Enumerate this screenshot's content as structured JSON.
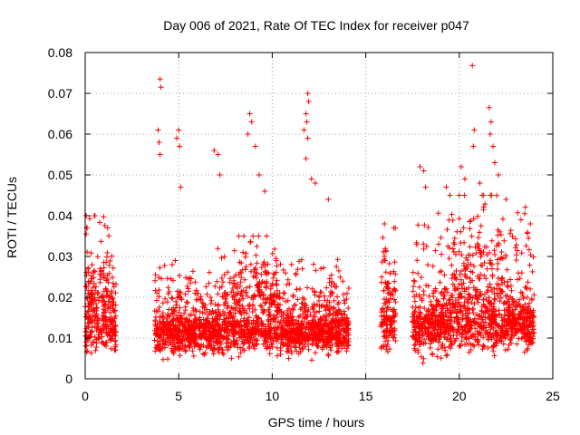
{
  "chart_data": {
    "type": "scatter",
    "title": "Day 006 of 2021, Rate Of TEC Index for receiver p047",
    "xlabel": "GPS time / hours",
    "ylabel": "ROTI / TECUs",
    "xlim": [
      0,
      25
    ],
    "ylim": [
      0,
      0.08
    ],
    "x_ticks": [
      0,
      5,
      10,
      15,
      20,
      25
    ],
    "y_ticks": [
      0,
      0.01,
      0.02,
      0.03,
      0.04,
      0.05,
      0.06,
      0.07,
      0.08
    ],
    "x_tick_labels": [
      "0",
      "5",
      "10",
      "15",
      "20",
      "25"
    ],
    "y_tick_labels": [
      "0",
      "0.01",
      "0.02",
      "0.03",
      "0.04",
      "0.05",
      "0.06",
      "0.07",
      "0.08"
    ],
    "grid": true,
    "marker": "+",
    "marker_color": "#ff0000",
    "segments": [
      {
        "t0": 0.0,
        "t1": 1.65,
        "base": 0.012,
        "spread": 0.006,
        "maxv": 0.04,
        "peak_t": 0.1
      },
      {
        "t0": 3.7,
        "t1": 14.1,
        "base": 0.011,
        "spread": 0.005,
        "maxv": 0.035,
        "peak_t": 9.0
      },
      {
        "t0": 15.8,
        "t1": 16.6,
        "base": 0.012,
        "spread": 0.007,
        "maxv": 0.037,
        "peak_t": 16.2
      },
      {
        "t0": 17.5,
        "t1": 24.0,
        "base": 0.013,
        "spread": 0.007,
        "maxv": 0.045,
        "peak_t": 21.0
      }
    ],
    "peaks": [
      {
        "x": 0.05,
        "y": 0.04
      },
      {
        "x": 0.1,
        "y": 0.037
      },
      {
        "x": 1.2,
        "y": 0.037
      },
      {
        "x": 4.0,
        "y": 0.0735
      },
      {
        "x": 4.05,
        "y": 0.0715
      },
      {
        "x": 3.9,
        "y": 0.061
      },
      {
        "x": 3.95,
        "y": 0.058
      },
      {
        "x": 4.0,
        "y": 0.055
      },
      {
        "x": 5.0,
        "y": 0.061
      },
      {
        "x": 4.9,
        "y": 0.059
      },
      {
        "x": 5.05,
        "y": 0.057
      },
      {
        "x": 5.1,
        "y": 0.047
      },
      {
        "x": 6.9,
        "y": 0.056
      },
      {
        "x": 7.1,
        "y": 0.055
      },
      {
        "x": 7.2,
        "y": 0.05
      },
      {
        "x": 8.8,
        "y": 0.065
      },
      {
        "x": 8.9,
        "y": 0.063
      },
      {
        "x": 8.7,
        "y": 0.06
      },
      {
        "x": 9.1,
        "y": 0.057
      },
      {
        "x": 9.3,
        "y": 0.05
      },
      {
        "x": 9.6,
        "y": 0.046
      },
      {
        "x": 11.9,
        "y": 0.07
      },
      {
        "x": 11.95,
        "y": 0.068
      },
      {
        "x": 11.8,
        "y": 0.065
      },
      {
        "x": 11.85,
        "y": 0.063
      },
      {
        "x": 11.7,
        "y": 0.061
      },
      {
        "x": 11.9,
        "y": 0.059
      },
      {
        "x": 11.8,
        "y": 0.054
      },
      {
        "x": 12.1,
        "y": 0.049
      },
      {
        "x": 12.3,
        "y": 0.048
      },
      {
        "x": 13.0,
        "y": 0.044
      },
      {
        "x": 16.0,
        "y": 0.038
      },
      {
        "x": 16.5,
        "y": 0.037
      },
      {
        "x": 17.9,
        "y": 0.052
      },
      {
        "x": 18.1,
        "y": 0.051
      },
      {
        "x": 18.2,
        "y": 0.047
      },
      {
        "x": 19.3,
        "y": 0.047
      },
      {
        "x": 19.5,
        "y": 0.045
      },
      {
        "x": 20.1,
        "y": 0.052
      },
      {
        "x": 20.3,
        "y": 0.049
      },
      {
        "x": 20.7,
        "y": 0.0768
      },
      {
        "x": 20.8,
        "y": 0.061
      },
      {
        "x": 20.75,
        "y": 0.057
      },
      {
        "x": 21.1,
        "y": 0.048
      },
      {
        "x": 21.6,
        "y": 0.0665
      },
      {
        "x": 21.7,
        "y": 0.063
      },
      {
        "x": 21.65,
        "y": 0.06
      },
      {
        "x": 21.8,
        "y": 0.057
      },
      {
        "x": 21.9,
        "y": 0.053
      },
      {
        "x": 22.1,
        "y": 0.05
      },
      {
        "x": 22.5,
        "y": 0.044
      },
      {
        "x": 23.3,
        "y": 0.039
      },
      {
        "x": 23.8,
        "y": 0.038
      }
    ],
    "n_points": 3600,
    "seed": 6
  }
}
